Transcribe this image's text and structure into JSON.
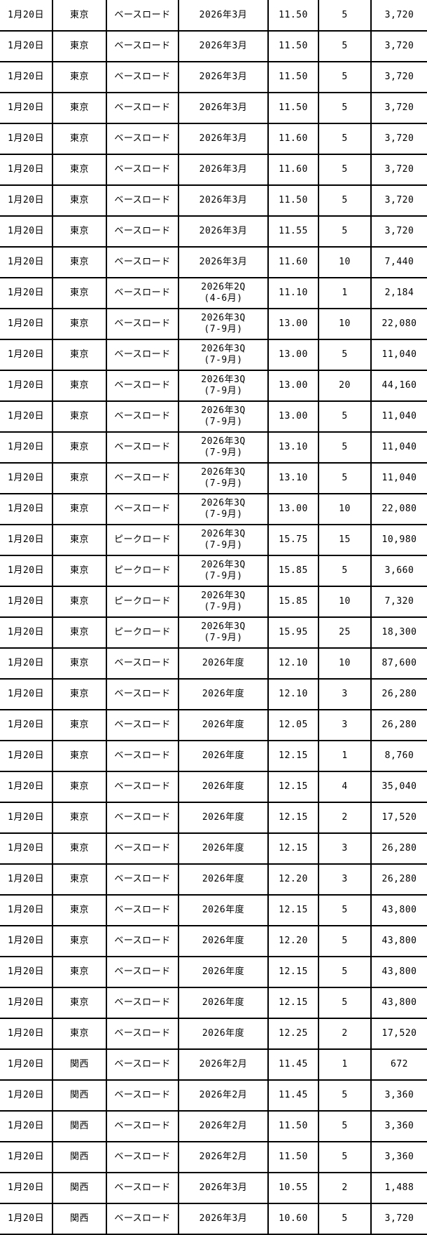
{
  "page": {
    "background_color": "#ffffff",
    "text_color": "#000000",
    "border_color": "#000000"
  },
  "table": {
    "columns": [
      "date",
      "area",
      "load_type",
      "period",
      "price",
      "quantity",
      "total"
    ],
    "rows": [
      {
        "date": "1月20日",
        "area": "東京",
        "load_type": "ベースロード",
        "period": [
          "2026年3月"
        ],
        "price": "11.50",
        "quantity": "5",
        "total": "3,720"
      },
      {
        "date": "1月20日",
        "area": "東京",
        "load_type": "ベースロード",
        "period": [
          "2026年3月"
        ],
        "price": "11.50",
        "quantity": "5",
        "total": "3,720"
      },
      {
        "date": "1月20日",
        "area": "東京",
        "load_type": "ベースロード",
        "period": [
          "2026年3月"
        ],
        "price": "11.50",
        "quantity": "5",
        "total": "3,720"
      },
      {
        "date": "1月20日",
        "area": "東京",
        "load_type": "ベースロード",
        "period": [
          "2026年3月"
        ],
        "price": "11.50",
        "quantity": "5",
        "total": "3,720"
      },
      {
        "date": "1月20日",
        "area": "東京",
        "load_type": "ベースロード",
        "period": [
          "2026年3月"
        ],
        "price": "11.60",
        "quantity": "5",
        "total": "3,720"
      },
      {
        "date": "1月20日",
        "area": "東京",
        "load_type": "ベースロード",
        "period": [
          "2026年3月"
        ],
        "price": "11.60",
        "quantity": "5",
        "total": "3,720"
      },
      {
        "date": "1月20日",
        "area": "東京",
        "load_type": "ベースロード",
        "period": [
          "2026年3月"
        ],
        "price": "11.50",
        "quantity": "5",
        "total": "3,720"
      },
      {
        "date": "1月20日",
        "area": "東京",
        "load_type": "ベースロード",
        "period": [
          "2026年3月"
        ],
        "price": "11.55",
        "quantity": "5",
        "total": "3,720"
      },
      {
        "date": "1月20日",
        "area": "東京",
        "load_type": "ベースロード",
        "period": [
          "2026年3月"
        ],
        "price": "11.60",
        "quantity": "10",
        "total": "7,440"
      },
      {
        "date": "1月20日",
        "area": "東京",
        "load_type": "ベースロード",
        "period": [
          "2026年2Q",
          "(4-6月)"
        ],
        "price": "11.10",
        "quantity": "1",
        "total": "2,184"
      },
      {
        "date": "1月20日",
        "area": "東京",
        "load_type": "ベースロード",
        "period": [
          "2026年3Q",
          "(7-9月)"
        ],
        "price": "13.00",
        "quantity": "10",
        "total": "22,080"
      },
      {
        "date": "1月20日",
        "area": "東京",
        "load_type": "ベースロード",
        "period": [
          "2026年3Q",
          "(7-9月)"
        ],
        "price": "13.00",
        "quantity": "5",
        "total": "11,040"
      },
      {
        "date": "1月20日",
        "area": "東京",
        "load_type": "ベースロード",
        "period": [
          "2026年3Q",
          "(7-9月)"
        ],
        "price": "13.00",
        "quantity": "20",
        "total": "44,160"
      },
      {
        "date": "1月20日",
        "area": "東京",
        "load_type": "ベースロード",
        "period": [
          "2026年3Q",
          "(7-9月)"
        ],
        "price": "13.00",
        "quantity": "5",
        "total": "11,040"
      },
      {
        "date": "1月20日",
        "area": "東京",
        "load_type": "ベースロード",
        "period": [
          "2026年3Q",
          "(7-9月)"
        ],
        "price": "13.10",
        "quantity": "5",
        "total": "11,040"
      },
      {
        "date": "1月20日",
        "area": "東京",
        "load_type": "ベースロード",
        "period": [
          "2026年3Q",
          "(7-9月)"
        ],
        "price": "13.10",
        "quantity": "5",
        "total": "11,040"
      },
      {
        "date": "1月20日",
        "area": "東京",
        "load_type": "ベースロード",
        "period": [
          "2026年3Q",
          "(7-9月)"
        ],
        "price": "13.00",
        "quantity": "10",
        "total": "22,080"
      },
      {
        "date": "1月20日",
        "area": "東京",
        "load_type": "ピークロード",
        "period": [
          "2026年3Q",
          "(7-9月)"
        ],
        "price": "15.75",
        "quantity": "15",
        "total": "10,980"
      },
      {
        "date": "1月20日",
        "area": "東京",
        "load_type": "ピークロード",
        "period": [
          "2026年3Q",
          "(7-9月)"
        ],
        "price": "15.85",
        "quantity": "5",
        "total": "3,660"
      },
      {
        "date": "1月20日",
        "area": "東京",
        "load_type": "ピークロード",
        "period": [
          "2026年3Q",
          "(7-9月)"
        ],
        "price": "15.85",
        "quantity": "10",
        "total": "7,320"
      },
      {
        "date": "1月20日",
        "area": "東京",
        "load_type": "ピークロード",
        "period": [
          "2026年3Q",
          "(7-9月)"
        ],
        "price": "15.95",
        "quantity": "25",
        "total": "18,300"
      },
      {
        "date": "1月20日",
        "area": "東京",
        "load_type": "ベースロード",
        "period": [
          "2026年度"
        ],
        "price": "12.10",
        "quantity": "10",
        "total": "87,600"
      },
      {
        "date": "1月20日",
        "area": "東京",
        "load_type": "ベースロード",
        "period": [
          "2026年度"
        ],
        "price": "12.10",
        "quantity": "3",
        "total": "26,280"
      },
      {
        "date": "1月20日",
        "area": "東京",
        "load_type": "ベースロード",
        "period": [
          "2026年度"
        ],
        "price": "12.05",
        "quantity": "3",
        "total": "26,280"
      },
      {
        "date": "1月20日",
        "area": "東京",
        "load_type": "ベースロード",
        "period": [
          "2026年度"
        ],
        "price": "12.15",
        "quantity": "1",
        "total": "8,760"
      },
      {
        "date": "1月20日",
        "area": "東京",
        "load_type": "ベースロード",
        "period": [
          "2026年度"
        ],
        "price": "12.15",
        "quantity": "4",
        "total": "35,040"
      },
      {
        "date": "1月20日",
        "area": "東京",
        "load_type": "ベースロード",
        "period": [
          "2026年度"
        ],
        "price": "12.15",
        "quantity": "2",
        "total": "17,520"
      },
      {
        "date": "1月20日",
        "area": "東京",
        "load_type": "ベースロード",
        "period": [
          "2026年度"
        ],
        "price": "12.15",
        "quantity": "3",
        "total": "26,280"
      },
      {
        "date": "1月20日",
        "area": "東京",
        "load_type": "ベースロード",
        "period": [
          "2026年度"
        ],
        "price": "12.20",
        "quantity": "3",
        "total": "26,280"
      },
      {
        "date": "1月20日",
        "area": "東京",
        "load_type": "ベースロード",
        "period": [
          "2026年度"
        ],
        "price": "12.15",
        "quantity": "5",
        "total": "43,800"
      },
      {
        "date": "1月20日",
        "area": "東京",
        "load_type": "ベースロード",
        "period": [
          "2026年度"
        ],
        "price": "12.20",
        "quantity": "5",
        "total": "43,800"
      },
      {
        "date": "1月20日",
        "area": "東京",
        "load_type": "ベースロード",
        "period": [
          "2026年度"
        ],
        "price": "12.15",
        "quantity": "5",
        "total": "43,800"
      },
      {
        "date": "1月20日",
        "area": "東京",
        "load_type": "ベースロード",
        "period": [
          "2026年度"
        ],
        "price": "12.15",
        "quantity": "5",
        "total": "43,800"
      },
      {
        "date": "1月20日",
        "area": "東京",
        "load_type": "ベースロード",
        "period": [
          "2026年度"
        ],
        "price": "12.25",
        "quantity": "2",
        "total": "17,520"
      },
      {
        "date": "1月20日",
        "area": "関西",
        "load_type": "ベースロード",
        "period": [
          "2026年2月"
        ],
        "price": "11.45",
        "quantity": "1",
        "total": "672"
      },
      {
        "date": "1月20日",
        "area": "関西",
        "load_type": "ベースロード",
        "period": [
          "2026年2月"
        ],
        "price": "11.45",
        "quantity": "5",
        "total": "3,360"
      },
      {
        "date": "1月20日",
        "area": "関西",
        "load_type": "ベースロード",
        "period": [
          "2026年2月"
        ],
        "price": "11.50",
        "quantity": "5",
        "total": "3,360"
      },
      {
        "date": "1月20日",
        "area": "関西",
        "load_type": "ベースロード",
        "period": [
          "2026年2月"
        ],
        "price": "11.50",
        "quantity": "5",
        "total": "3,360"
      },
      {
        "date": "1月20日",
        "area": "関西",
        "load_type": "ベースロード",
        "period": [
          "2026年3月"
        ],
        "price": "10.55",
        "quantity": "2",
        "total": "1,488"
      },
      {
        "date": "1月20日",
        "area": "関西",
        "load_type": "ベースロード",
        "period": [
          "2026年3月"
        ],
        "price": "10.60",
        "quantity": "5",
        "total": "3,720"
      }
    ]
  }
}
